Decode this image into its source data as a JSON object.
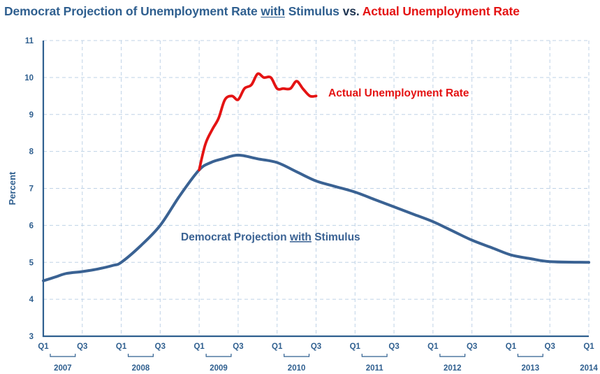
{
  "title": {
    "part1": "Democrat Projection of Unemployment Rate ",
    "with": "with",
    "part2": " Stimulus ",
    "vs": "vs.",
    "part3": " Actual Unemployment Rate"
  },
  "chart_data": {
    "type": "line",
    "title": "Democrat Projection of Unemployment Rate with Stimulus vs. Actual Unemployment Rate",
    "xlabel": "",
    "ylabel": "Percent",
    "ylim": [
      3,
      11
    ],
    "yticks": [
      "3",
      "4",
      "5",
      "6",
      "7",
      "8",
      "9",
      "10",
      "11"
    ],
    "xlim": [
      2007.0,
      2014.0
    ],
    "quarter_ticks": [
      {
        "label": "Q1",
        "x": 2007.0
      },
      {
        "label": "Q3",
        "x": 2007.5
      },
      {
        "label": "Q1",
        "x": 2008.0
      },
      {
        "label": "Q3",
        "x": 2008.5
      },
      {
        "label": "Q1",
        "x": 2009.0
      },
      {
        "label": "Q3",
        "x": 2009.5
      },
      {
        "label": "Q1",
        "x": 2010.0
      },
      {
        "label": "Q3",
        "x": 2010.5
      },
      {
        "label": "Q1",
        "x": 2011.0
      },
      {
        "label": "Q3",
        "x": 2011.5
      },
      {
        "label": "Q1",
        "x": 2012.0
      },
      {
        "label": "Q3",
        "x": 2012.5
      },
      {
        "label": "Q1",
        "x": 2013.0
      },
      {
        "label": "Q3",
        "x": 2013.5
      },
      {
        "label": "Q1",
        "x": 2014.0
      }
    ],
    "year_labels": [
      {
        "label": "2007",
        "x": 2007.25
      },
      {
        "label": "2008",
        "x": 2008.25
      },
      {
        "label": "2009",
        "x": 2009.25
      },
      {
        "label": "2010",
        "x": 2010.25
      },
      {
        "label": "2011",
        "x": 2011.25
      },
      {
        "label": "2012",
        "x": 2012.25
      },
      {
        "label": "2013",
        "x": 2013.25
      },
      {
        "label": "2014",
        "x": 2014.0
      }
    ],
    "grid": true,
    "series": [
      {
        "name": "Democrat Projection with Stimulus",
        "color": "#3a6293",
        "points": [
          [
            2007.0,
            4.5
          ],
          [
            2007.15,
            4.6
          ],
          [
            2007.3,
            4.7
          ],
          [
            2007.5,
            4.75
          ],
          [
            2007.7,
            4.82
          ],
          [
            2007.9,
            4.92
          ],
          [
            2008.0,
            5.0
          ],
          [
            2008.25,
            5.45
          ],
          [
            2008.5,
            6.0
          ],
          [
            2008.75,
            6.8
          ],
          [
            2009.0,
            7.5
          ],
          [
            2009.15,
            7.7
          ],
          [
            2009.3,
            7.8
          ],
          [
            2009.5,
            7.9
          ],
          [
            2009.75,
            7.8
          ],
          [
            2010.0,
            7.7
          ],
          [
            2010.25,
            7.45
          ],
          [
            2010.5,
            7.2
          ],
          [
            2010.75,
            7.05
          ],
          [
            2011.0,
            6.9
          ],
          [
            2011.25,
            6.7
          ],
          [
            2011.5,
            6.5
          ],
          [
            2011.75,
            6.3
          ],
          [
            2012.0,
            6.1
          ],
          [
            2012.25,
            5.85
          ],
          [
            2012.5,
            5.6
          ],
          [
            2012.75,
            5.4
          ],
          [
            2013.0,
            5.2
          ],
          [
            2013.25,
            5.1
          ],
          [
            2013.5,
            5.02
          ],
          [
            2014.0,
            5.0
          ]
        ]
      },
      {
        "name": "Actual Unemployment Rate",
        "color": "#e41313",
        "points": [
          [
            2009.0,
            7.5
          ],
          [
            2009.08,
            8.2
          ],
          [
            2009.17,
            8.6
          ],
          [
            2009.25,
            8.9
          ],
          [
            2009.33,
            9.4
          ],
          [
            2009.42,
            9.5
          ],
          [
            2009.5,
            9.4
          ],
          [
            2009.58,
            9.7
          ],
          [
            2009.67,
            9.8
          ],
          [
            2009.75,
            10.1
          ],
          [
            2009.83,
            10.0
          ],
          [
            2009.92,
            10.0
          ],
          [
            2010.0,
            9.7
          ],
          [
            2010.08,
            9.7
          ],
          [
            2010.17,
            9.7
          ],
          [
            2010.25,
            9.9
          ],
          [
            2010.33,
            9.7
          ],
          [
            2010.42,
            9.5
          ],
          [
            2010.5,
            9.5
          ]
        ]
      }
    ],
    "annotations": {
      "actual": "Actual Unemployment Rate",
      "projection_pre": "Democrat Projection ",
      "projection_with": "with",
      "projection_post": " Stimulus"
    }
  }
}
